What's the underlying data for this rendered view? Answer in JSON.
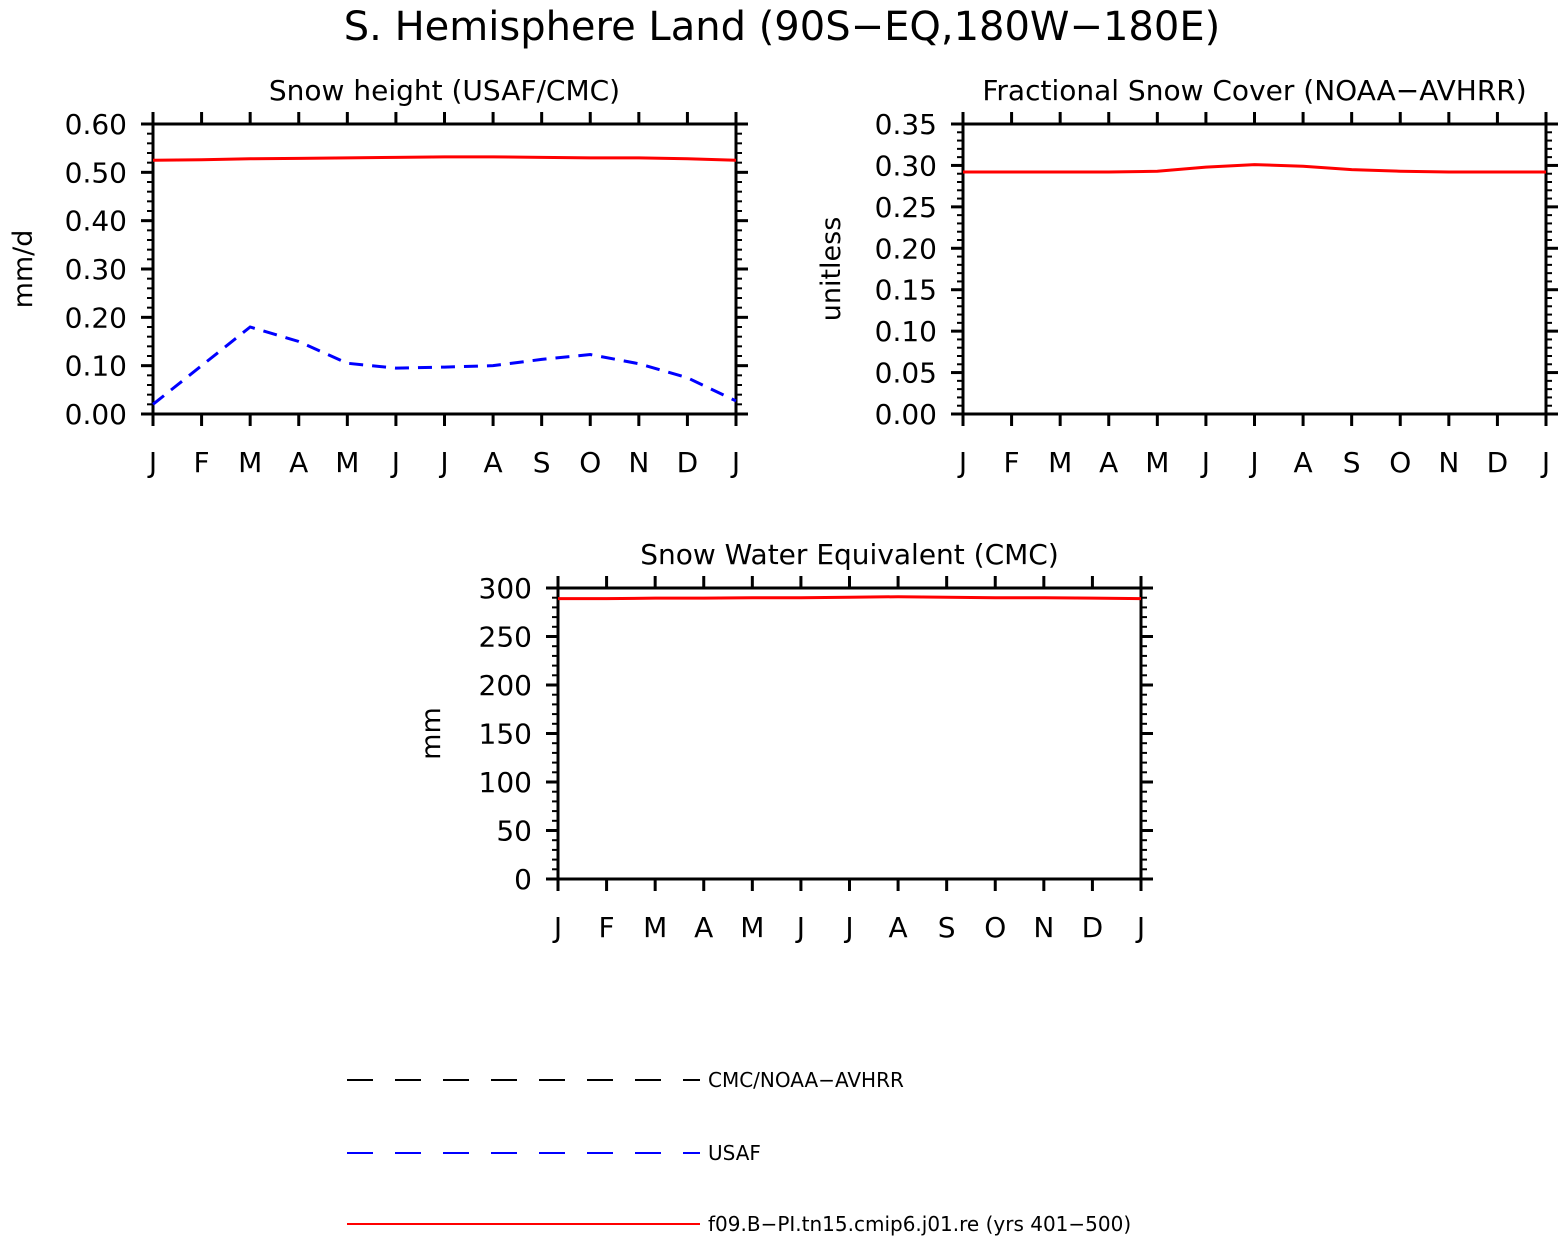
{
  "title": "S. Hemisphere Land (90S−EQ,180W−180E)",
  "months": [
    "J",
    "F",
    "M",
    "A",
    "M",
    "J",
    "J",
    "A",
    "S",
    "O",
    "N",
    "D",
    "J"
  ],
  "colors": {
    "model": "#ff0000",
    "usaf": "#0000ff",
    "obs": "#000000"
  },
  "legend": [
    {
      "label": "CMC/NOAA−AVHRR",
      "color": "#000000",
      "style": "dashed"
    },
    {
      "label": "USAF",
      "color": "#0000ff",
      "style": "dashed"
    },
    {
      "label": "f09.B−PI.tn15.cmip6.j01.re (yrs 401−500)",
      "color": "#ff0000",
      "style": "solid"
    }
  ],
  "chart_data": [
    {
      "type": "line",
      "title": "Snow height (USAF/CMC)",
      "ylabel": "mm/d",
      "xlabel": "",
      "categories": [
        "J",
        "F",
        "M",
        "A",
        "M",
        "J",
        "J",
        "A",
        "S",
        "O",
        "N",
        "D",
        "J"
      ],
      "ylim": [
        0,
        0.6
      ],
      "yticks": [
        "0.00",
        "0.10",
        "0.20",
        "0.30",
        "0.40",
        "0.50",
        "0.60"
      ],
      "series": [
        {
          "name": "CMC/NOAA−AVHRR",
          "color": "#000000",
          "style": "dashed",
          "values": [
            0,
            0,
            0,
            0,
            0,
            0,
            0,
            0,
            0,
            0,
            0,
            0,
            0
          ]
        },
        {
          "name": "USAF",
          "color": "#0000ff",
          "style": "dashed",
          "values": [
            0.02,
            0.1,
            0.18,
            0.15,
            0.105,
            0.095,
            0.097,
            0.1,
            0.113,
            0.123,
            0.104,
            0.075,
            0.027
          ]
        },
        {
          "name": "f09.B−PI.tn15.cmip6.j01.re (yrs 401−500)",
          "color": "#ff0000",
          "style": "solid",
          "values": [
            0.525,
            0.526,
            0.528,
            0.529,
            0.53,
            0.531,
            0.532,
            0.532,
            0.531,
            0.53,
            0.53,
            0.528,
            0.525
          ]
        }
      ]
    },
    {
      "type": "line",
      "title": "Fractional Snow Cover (NOAA−AVHRR)",
      "ylabel": "unitless",
      "xlabel": "",
      "categories": [
        "J",
        "F",
        "M",
        "A",
        "M",
        "J",
        "J",
        "A",
        "S",
        "O",
        "N",
        "D",
        "J"
      ],
      "ylim": [
        0,
        0.35
      ],
      "yticks": [
        "0.00",
        "0.05",
        "0.10",
        "0.15",
        "0.20",
        "0.25",
        "0.30",
        "0.35"
      ],
      "series": [
        {
          "name": "CMC/NOAA−AVHRR",
          "color": "#000000",
          "style": "dashed",
          "values": [
            0,
            0,
            0,
            0,
            0,
            0,
            0,
            0,
            0,
            0,
            0,
            0,
            0
          ]
        },
        {
          "name": "f09.B−PI.tn15.cmip6.j01.re (yrs 401−500)",
          "color": "#ff0000",
          "style": "solid",
          "values": [
            0.292,
            0.292,
            0.292,
            0.292,
            0.293,
            0.298,
            0.301,
            0.299,
            0.295,
            0.293,
            0.292,
            0.292,
            0.292
          ]
        }
      ]
    },
    {
      "type": "line",
      "title": "Snow Water Equivalent (CMC)",
      "ylabel": "mm",
      "xlabel": "",
      "categories": [
        "J",
        "F",
        "M",
        "A",
        "M",
        "J",
        "J",
        "A",
        "S",
        "O",
        "N",
        "D",
        "J"
      ],
      "ylim": [
        0,
        300
      ],
      "yticks": [
        "0",
        "50",
        "100",
        "150",
        "200",
        "250",
        "300"
      ],
      "series": [
        {
          "name": "CMC/NOAA−AVHRR",
          "color": "#000000",
          "style": "dashed",
          "values": [
            0,
            0,
            0,
            0,
            0,
            0,
            0,
            0,
            0,
            0,
            0,
            0,
            0
          ]
        },
        {
          "name": "f09.B−PI.tn15.cmip6.j01.re (yrs 401−500)",
          "color": "#ff0000",
          "style": "solid",
          "values": [
            289,
            289,
            289.5,
            289.5,
            290,
            290,
            290.5,
            291,
            290.5,
            290,
            290,
            289.5,
            289
          ]
        }
      ]
    }
  ]
}
